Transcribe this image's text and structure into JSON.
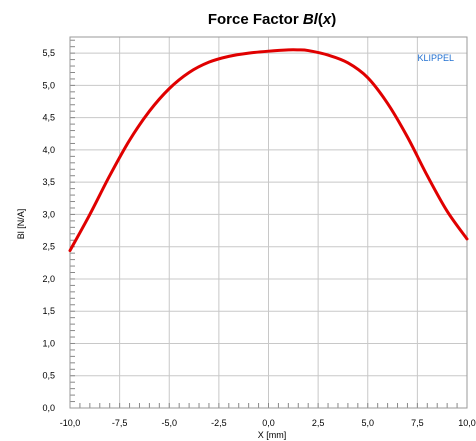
{
  "chart_data": {
    "type": "line",
    "title_main": "Force Factor ",
    "title_italic": "Bl",
    "title_paren_open": "(",
    "title_var": "x",
    "title_paren_close": ")",
    "xlabel": "X [mm]",
    "ylabel": "Bl [N/A]",
    "xlim": [
      -10,
      10
    ],
    "ylim": [
      0,
      5.75
    ],
    "x_ticks": [
      -10,
      -7.5,
      -5,
      -2.5,
      0,
      2.5,
      5,
      7.5,
      10
    ],
    "x_tick_labels": [
      "-10,0",
      "-7,5",
      "-5,0",
      "-2,5",
      "0,0",
      "2,5",
      "5,0",
      "7,5",
      "10,0"
    ],
    "y_ticks": [
      0,
      0.5,
      1,
      1.5,
      2,
      2.5,
      3,
      3.5,
      4,
      4.5,
      5,
      5.5
    ],
    "y_tick_labels": [
      "0,0",
      "0,5",
      "1,0",
      "1,5",
      "2,0",
      "2,5",
      "3,0",
      "3,5",
      "4,0",
      "4,5",
      "5,0",
      "5,5"
    ],
    "grid": true,
    "brand_label": "KLIPPEL",
    "colors": {
      "curve": "#e00000",
      "grid": "#c8c8c8",
      "frame": "#9a9a9a",
      "brand": "#1f6fd0"
    },
    "series": [
      {
        "x": [
          -10,
          -9,
          -8,
          -7,
          -6,
          -5,
          -4,
          -3,
          -2,
          -1,
          0,
          1,
          1.5,
          2,
          3,
          4,
          5,
          6,
          7,
          8,
          9,
          10
        ],
        "values": [
          2.44,
          3.0,
          3.6,
          4.15,
          4.6,
          4.95,
          5.2,
          5.36,
          5.45,
          5.5,
          5.53,
          5.55,
          5.55,
          5.54,
          5.47,
          5.35,
          5.12,
          4.72,
          4.2,
          3.6,
          3.05,
          2.62
        ]
      }
    ]
  }
}
